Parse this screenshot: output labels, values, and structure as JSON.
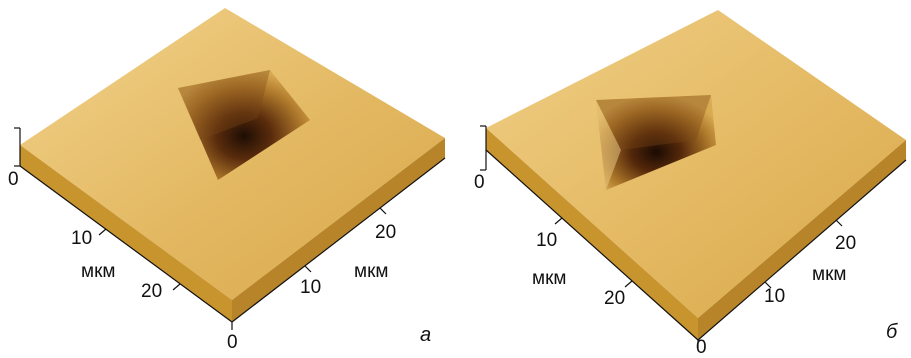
{
  "panels": [
    {
      "caption": "а",
      "z_ticks": [
        "0"
      ],
      "axis_left": {
        "ticks": [
          "10",
          "20"
        ],
        "unit": "мкм"
      },
      "axis_right": {
        "ticks": [
          "0",
          "10",
          "20"
        ],
        "unit": "мкм"
      }
    },
    {
      "caption": "б",
      "z_ticks": [
        "0"
      ],
      "axis_left": {
        "ticks": [
          "10",
          "20"
        ],
        "unit": "мкм"
      },
      "axis_right": {
        "ticks": [
          "0",
          "10",
          "20"
        ],
        "unit": "мкм"
      }
    }
  ],
  "colors": {
    "surface_light": "#ecc77a",
    "surface_mid": "#d9a94a",
    "pit_dark": "#1e0d04",
    "edge": "#c79030",
    "axis": "#111111"
  }
}
